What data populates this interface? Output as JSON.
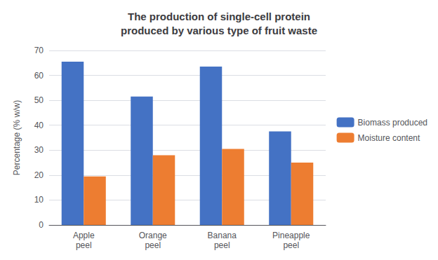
{
  "chart_data": {
    "type": "bar",
    "title": "The production of single-cell protein\nproduced by various type of fruit waste",
    "categories": [
      "Apple\npeel",
      "Orange\npeel",
      "Banana\npeel",
      "Pineapple\npeel"
    ],
    "series": [
      {
        "name": "Biomass produced",
        "color": "#4472C4",
        "values": [
          65.5,
          51.5,
          63.5,
          37.5
        ]
      },
      {
        "name": "Moisture content",
        "color": "#ED7D31",
        "values": [
          19.5,
          28.0,
          30.5,
          25.0
        ]
      }
    ],
    "ylabel": "Percentage (% w/w)",
    "ylim": [
      0,
      70
    ],
    "yticks": [
      0,
      10,
      20,
      30,
      40,
      50,
      60,
      70
    ],
    "grid": true,
    "legend": "right"
  }
}
